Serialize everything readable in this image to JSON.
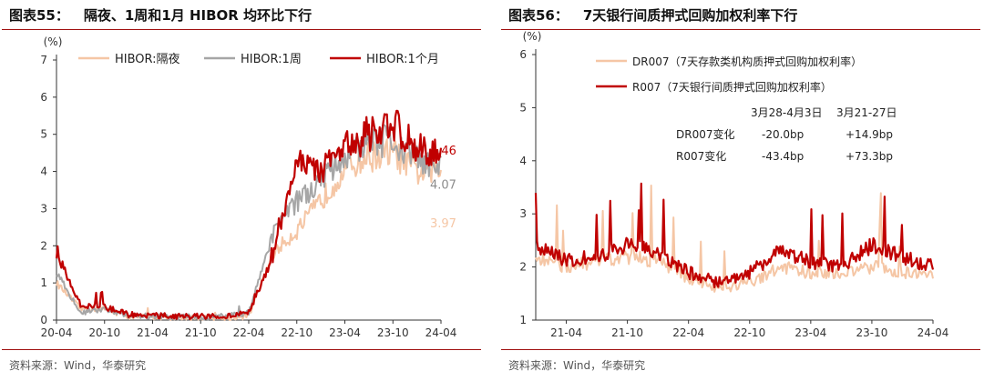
{
  "charts": [
    {
      "figure_number": "图表55：",
      "title": "隔夜、1周和1月 HIBOR 均环比下行",
      "source": "资料来源：Wind，华泰研究"
    },
    {
      "figure_number": "图表56：",
      "title": "7天银行间质押式回购加权利率下行",
      "source": "资料来源：Wind，华泰研究"
    }
  ],
  "chart_data": [
    {
      "type": "line",
      "unit_label": "(%)",
      "x": [
        "20-04",
        "20-07",
        "20-10",
        "21-01",
        "21-04",
        "21-07",
        "21-10",
        "22-01",
        "22-04",
        "22-07",
        "22-10",
        "23-01",
        "23-04",
        "23-07",
        "23-10",
        "24-01",
        "24-04"
      ],
      "x_ticks": [
        "20-04",
        "20-10",
        "21-04",
        "21-10",
        "22-04",
        "22-10",
        "23-04",
        "23-10",
        "24-04"
      ],
      "ylim": [
        0,
        7
      ],
      "y_ticks": [
        0,
        1,
        2,
        3,
        4,
        5,
        6,
        7
      ],
      "legend_position": "top",
      "series": [
        {
          "name": "HIBOR:隔夜",
          "color": "#f5c6a5",
          "width": 2,
          "values": [
            1.0,
            0.3,
            0.3,
            0.1,
            0.08,
            0.07,
            0.06,
            0.06,
            0.1,
            1.8,
            2.4,
            3.2,
            4.1,
            4.4,
            4.5,
            4.0,
            3.97
          ]
        },
        {
          "name": "HIBOR:1周",
          "color": "#a6a6a6",
          "width": 2,
          "values": [
            1.3,
            0.2,
            0.3,
            0.12,
            0.1,
            0.08,
            0.08,
            0.1,
            0.2,
            2.3,
            3.2,
            3.8,
            4.3,
            4.8,
            4.8,
            4.4,
            4.07
          ]
        },
        {
          "name": "HIBOR:1个月",
          "color": "#c00000",
          "width": 2.2,
          "values": [
            1.8,
            0.4,
            0.35,
            0.15,
            0.12,
            0.1,
            0.1,
            0.12,
            0.2,
            1.7,
            4.4,
            4.0,
            4.6,
            5.0,
            5.3,
            4.7,
            4.46
          ]
        }
      ],
      "end_labels": [
        {
          "text": "4.46",
          "value": 4.46,
          "color": "#c00000"
        },
        {
          "text": "4.07",
          "value": 4.07,
          "color": "#8c8c8c"
        },
        {
          "text": "3.97",
          "value": 3.97,
          "color": "#f5c6a5"
        }
      ]
    },
    {
      "type": "line",
      "unit_label": "(%)",
      "x": [
        "21-01",
        "21-04",
        "21-07",
        "21-10",
        "22-01",
        "22-04",
        "22-07",
        "22-10",
        "23-01",
        "23-04",
        "23-07",
        "23-10",
        "24-01",
        "24-04"
      ],
      "x_ticks": [
        "21-04",
        "21-10",
        "22-04",
        "22-10",
        "23-04",
        "23-10",
        "24-04"
      ],
      "ylim": [
        1,
        6
      ],
      "y_ticks": [
        1,
        2,
        3,
        4,
        5,
        6
      ],
      "legend_position": "top",
      "series": [
        {
          "name": "DR007（7天存款类机构质押式回购加权利率）",
          "color": "#f5c6a5",
          "width": 2,
          "values": [
            2.2,
            2.0,
            2.1,
            2.2,
            2.1,
            1.8,
            1.6,
            1.7,
            2.0,
            1.9,
            1.9,
            2.0,
            1.9,
            1.85
          ]
        },
        {
          "name": "R007（7天银行间质押式回购加权利率）",
          "color": "#c00000",
          "width": 2.2,
          "values": [
            2.4,
            2.1,
            2.2,
            2.4,
            2.3,
            1.9,
            1.7,
            1.9,
            2.3,
            2.1,
            2.0,
            2.4,
            2.2,
            2.0
          ]
        }
      ],
      "annotation_table": {
        "headers": [
          "3月28-4月3日",
          "3月21-27日"
        ],
        "rows": [
          {
            "label": "DR007变化",
            "values": [
              "-20.0bp",
              "+14.9bp"
            ]
          },
          {
            "label": "R007变化",
            "values": [
              "-43.4bp",
              "+73.3bp"
            ]
          }
        ]
      }
    }
  ]
}
